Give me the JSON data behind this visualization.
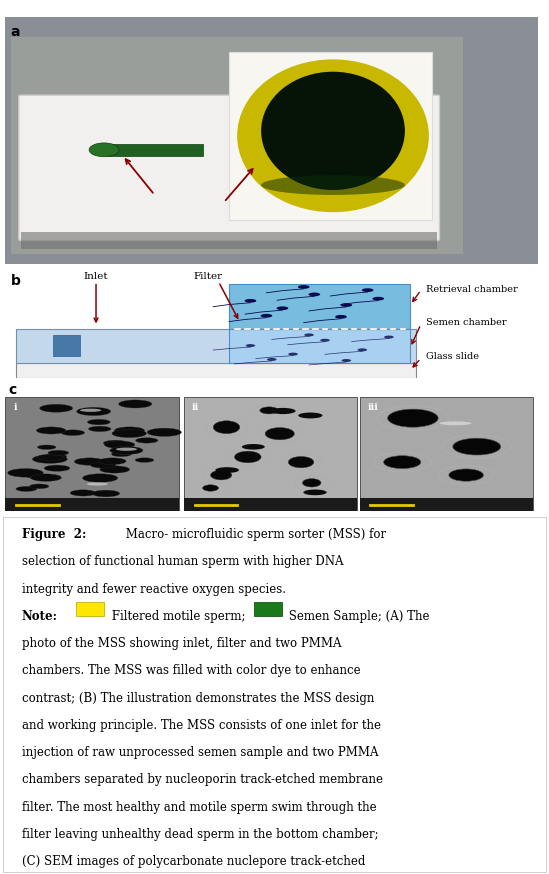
{
  "figure_label_a": "a",
  "figure_label_b": "b",
  "figure_label_c": "c",
  "label_inlet": "Inlet",
  "label_filter": "Filter",
  "label_retrieval": "Retrieval chamber",
  "label_semen": "Semen chamber",
  "label_glass": "Glass slide",
  "yellow_color": "#FFE600",
  "green_color": "#1a7a1a",
  "bg_color": "#FFFFFF",
  "photo_bg": "#8a8a8a",
  "tray_color": "#e8e8e0",
  "yellow_dye": "#c8bc00",
  "dark_green_pool": "#0a2008",
  "inlet_green": "#2a7a1a",
  "arrow_red": "#880000",
  "left_ch_color": "#b8d4e8",
  "right_ch_top_color": "#70b8e0",
  "right_ch_bot_color": "#c8e0f8",
  "filter_bar_color": "#f0f0f0",
  "sperm_color": "#0a0a50",
  "sem1_bg": "#808080",
  "sem2_bg": "#b0b0b0",
  "sem3_bg": "#a8a8a8",
  "sem_pore_color": "#101010",
  "scale_bar_color": "#e8c800",
  "font_size_caption": 8.5,
  "font_size_label": 7.5,
  "font_size_panel": 10
}
